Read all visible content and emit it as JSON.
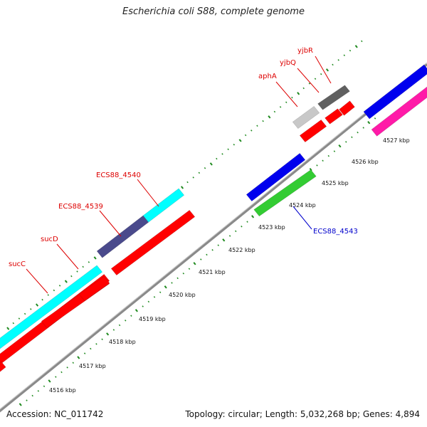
{
  "title": "Escherichia coli S88, complete genome",
  "accession": "Accession: NC_011742",
  "summary": "Topology: circular; Length: 5,032,268 bp; Genes: 4,894",
  "ticks": [
    "4516 kbp",
    "4517 kbp",
    "4518 kbp",
    "4519 kbp",
    "4520 kbp",
    "4521 kbp",
    "4522 kbp",
    "4523 kbp",
    "4524 kbp",
    "4525 kbp",
    "4526 kbp",
    "4527 kbp"
  ],
  "gene_labels": [
    {
      "id": "sucC",
      "text": "sucC",
      "color": "#dd0000"
    },
    {
      "id": "sucD",
      "text": "sucD",
      "color": "#dd0000"
    },
    {
      "id": "ECS88_4539",
      "text": "ECS88_4539",
      "color": "#dd0000"
    },
    {
      "id": "ECS88_4540",
      "text": "ECS88_4540",
      "color": "#dd0000"
    },
    {
      "id": "aphA",
      "text": "aphA",
      "color": "#dd0000"
    },
    {
      "id": "yjbQ",
      "text": "yjbQ",
      "color": "#dd0000"
    },
    {
      "id": "yjbR",
      "text": "yjbR",
      "color": "#dd0000"
    },
    {
      "id": "ECS88_4543",
      "text": "ECS88_4543",
      "color": "#0000cc"
    }
  ],
  "colors": {
    "backbone": "#8a8a8a",
    "tick": "#1f8a1f",
    "red": "#ff0000",
    "cyan": "#00ffff",
    "navy": "#4a4a8c",
    "blue": "#0000ee",
    "green": "#33cc33",
    "gray": "#606060",
    "lightgray": "#c8c8c8",
    "magenta": "#ff1aa8"
  }
}
